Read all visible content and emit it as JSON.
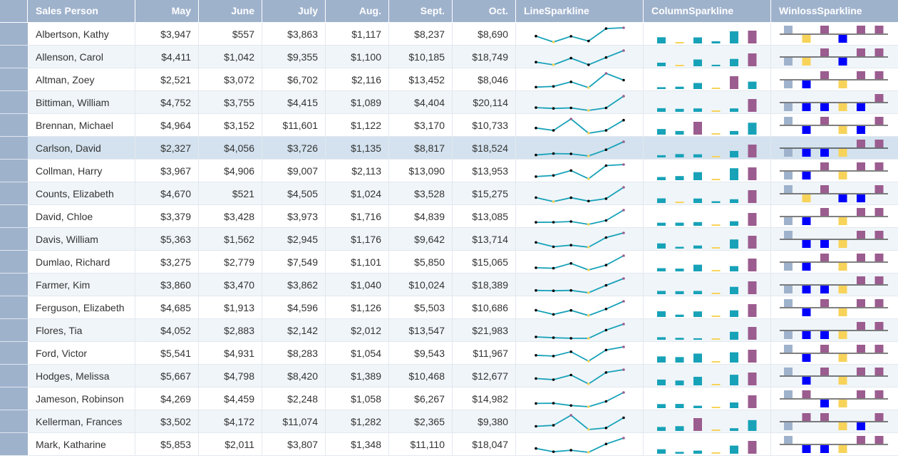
{
  "columns": {
    "sales_person": "Sales Person",
    "may": "May",
    "june": "June",
    "july": "July",
    "aug": "Aug.",
    "sept": "Sept.",
    "oct": "Oct.",
    "line_sparkline": "LineSparkline",
    "column_sparkline": "ColumnSparkline",
    "winloss_sparkline": "WinlossSparkline"
  },
  "selected_row": 5,
  "colors": {
    "header_bg": "#9fb2cc",
    "line": "#17a2b8",
    "point": "#000000",
    "low_point": "#f7d35a",
    "high_point": "#9b5c8f",
    "column": "#17a2b8",
    "column_low": "#f7d35a",
    "column_high": "#9b5c8f",
    "win": "#9b5c8f",
    "loss": "#0000ff",
    "win_first": "#9fb2cc",
    "loss_low": "#f7d35a"
  },
  "rows": [
    {
      "name": "Albertson, Kathy",
      "may": "$3,947",
      "june": "$557",
      "july": "$3,863",
      "aug": "$1,117",
      "sept": "$8,237",
      "oct": "$8,690"
    },
    {
      "name": "Allenson, Carol",
      "may": "$4,411",
      "june": "$1,042",
      "july": "$9,355",
      "aug": "$1,100",
      "sept": "$10,185",
      "oct": "$18,749"
    },
    {
      "name": "Altman, Zoey",
      "may": "$2,521",
      "june": "$3,072",
      "july": "$6,702",
      "aug": "$2,116",
      "sept": "$13,452",
      "oct": "$8,046"
    },
    {
      "name": "Bittiman, William",
      "may": "$4,752",
      "june": "$3,755",
      "july": "$4,415",
      "aug": "$1,089",
      "sept": "$4,404",
      "oct": "$20,114"
    },
    {
      "name": "Brennan, Michael",
      "may": "$4,964",
      "june": "$3,152",
      "july": "$11,601",
      "aug": "$1,122",
      "sept": "$3,170",
      "oct": "$10,733"
    },
    {
      "name": "Carlson, David",
      "may": "$2,327",
      "june": "$4,056",
      "july": "$3,726",
      "aug": "$1,135",
      "sept": "$8,817",
      "oct": "$18,524"
    },
    {
      "name": "Collman, Harry",
      "may": "$3,967",
      "june": "$4,906",
      "july": "$9,007",
      "aug": "$2,113",
      "sept": "$13,090",
      "oct": "$13,953"
    },
    {
      "name": "Counts, Elizabeth",
      "may": "$4,670",
      "june": "$521",
      "july": "$4,505",
      "aug": "$1,024",
      "sept": "$3,528",
      "oct": "$15,275"
    },
    {
      "name": "David, Chloe",
      "may": "$3,379",
      "june": "$3,428",
      "july": "$3,973",
      "aug": "$1,716",
      "sept": "$4,839",
      "oct": "$13,085"
    },
    {
      "name": "Davis, William",
      "may": "$5,363",
      "june": "$1,562",
      "july": "$2,945",
      "aug": "$1,176",
      "sept": "$9,642",
      "oct": "$13,714"
    },
    {
      "name": "Dumlao, Richard",
      "may": "$3,275",
      "june": "$2,779",
      "july": "$7,549",
      "aug": "$1,101",
      "sept": "$5,850",
      "oct": "$15,065"
    },
    {
      "name": "Farmer, Kim",
      "may": "$3,860",
      "june": "$3,470",
      "july": "$3,862",
      "aug": "$1,040",
      "sept": "$10,024",
      "oct": "$18,389"
    },
    {
      "name": "Ferguson, Elizabeth",
      "may": "$4,685",
      "june": "$1,913",
      "july": "$4,596",
      "aug": "$1,126",
      "sept": "$5,503",
      "oct": "$10,686"
    },
    {
      "name": "Flores, Tia",
      "may": "$4,052",
      "june": "$2,883",
      "july": "$2,142",
      "aug": "$2,012",
      "sept": "$13,547",
      "oct": "$21,983"
    },
    {
      "name": "Ford, Victor",
      "may": "$5,541",
      "june": "$4,931",
      "july": "$8,283",
      "aug": "$1,054",
      "sept": "$9,543",
      "oct": "$11,967"
    },
    {
      "name": "Hodges, Melissa",
      "may": "$5,667",
      "june": "$4,798",
      "july": "$8,420",
      "aug": "$1,389",
      "sept": "$10,468",
      "oct": "$12,677"
    },
    {
      "name": "Jameson, Robinson",
      "may": "$4,269",
      "june": "$4,459",
      "july": "$2,248",
      "aug": "$1,058",
      "sept": "$6,267",
      "oct": "$14,982"
    },
    {
      "name": "Kellerman, Frances",
      "may": "$3,502",
      "june": "$4,172",
      "july": "$11,074",
      "aug": "$1,282",
      "sept": "$2,365",
      "oct": "$9,380"
    },
    {
      "name": "Mark, Katharine",
      "may": "$5,853",
      "june": "$2,011",
      "july": "$3,807",
      "aug": "$1,348",
      "sept": "$11,110",
      "oct": "$18,047"
    }
  ]
}
